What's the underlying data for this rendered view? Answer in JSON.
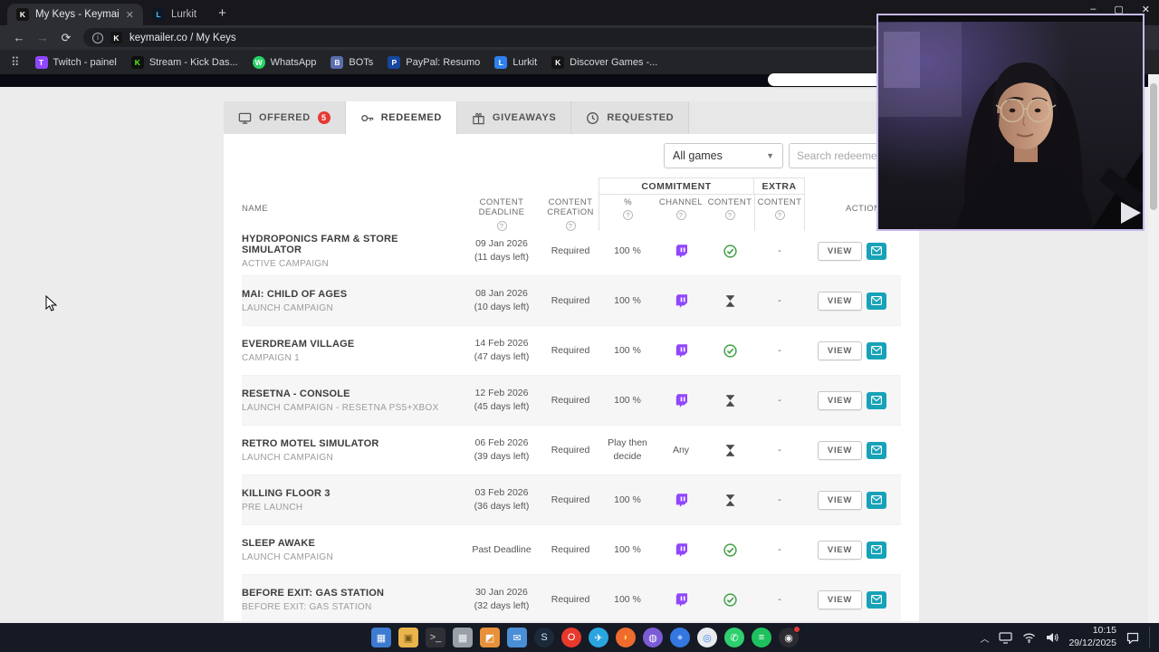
{
  "colors": {
    "accent_teal": "#17A2B8",
    "twitch_purple": "#9146FF",
    "success_green": "#43A047",
    "badge_red": "#E53935"
  },
  "browser": {
    "tabs": [
      {
        "title": "My Keys - Keymailer",
        "favicon": {
          "color": "#141414",
          "letter": "K",
          "fg": "#ffffff"
        }
      },
      {
        "title": "Lurkit",
        "favicon": {
          "color": "#0f1724",
          "letter": "L",
          "fg": "#4fc3f7"
        }
      }
    ],
    "new_tab_label": "+",
    "window_controls": {
      "minimize": "–",
      "maximize": "▢",
      "close": "✕"
    },
    "address": "keymailer.co / My Keys",
    "address_favicon": {
      "color": "#141414",
      "letter": "K",
      "fg": "#ffffff"
    },
    "bookmarks": [
      {
        "label": "Twitch - painel",
        "color": "#9146FF",
        "letter": "T",
        "fg": "#ffffff"
      },
      {
        "label": "Stream - Kick Das...",
        "color": "#0f0f0f",
        "letter": "K",
        "fg": "#53FC18"
      },
      {
        "label": "WhatsApp",
        "color": "#25D366",
        "letter": "W",
        "fg": "#ffffff",
        "round": true
      },
      {
        "label": "BOTs",
        "color": "#5b6eae",
        "letter": "B",
        "fg": "#ffffff"
      },
      {
        "label": "PayPal: Resumo",
        "color": "#1546a0",
        "letter": "P",
        "fg": "#ffffff"
      },
      {
        "label": "Lurkit",
        "color": "#2f80ed",
        "letter": "L",
        "fg": "#ffffff"
      },
      {
        "label": "Discover Games -...",
        "color": "#141414",
        "letter": "K",
        "fg": "#ffffff"
      }
    ]
  },
  "page": {
    "tabs": [
      {
        "label": "OFFERED",
        "badge": "5"
      },
      {
        "label": "REDEEMED"
      },
      {
        "label": "GIVEAWAYS"
      },
      {
        "label": "REQUESTED"
      }
    ],
    "filters": {
      "games": "All games",
      "search_placeholder": "Search redeemed"
    },
    "table": {
      "groups": {
        "commitment": "COMMITMENT",
        "extra": "EXTRA"
      },
      "columns": {
        "name": "NAME",
        "deadline": "CONTENT DEADLINE",
        "creation": "CONTENT CREATION",
        "percent": "%",
        "channel": "CHANNEL",
        "content": "CONTENT",
        "extra_content": "CONTENT",
        "actions": "ACTIONS"
      },
      "rows": [
        {
          "name": "HYDROPONICS FARM & STORE SIMULATOR",
          "subtitle": "ACTIVE CAMPAIGN",
          "deadline": "09 Jan 2026",
          "deadline_note": "(11 days left)",
          "creation": "Required",
          "percent": "100 %",
          "channel": "twitch",
          "status": "done",
          "extra": "-",
          "action": "VIEW"
        },
        {
          "name": "MAI: CHILD OF AGES",
          "subtitle": "LAUNCH CAMPAIGN",
          "deadline": "08 Jan 2026",
          "deadline_note": "(10 days left)",
          "creation": "Required",
          "percent": "100 %",
          "channel": "twitch",
          "status": "pending",
          "extra": "-",
          "action": "VIEW"
        },
        {
          "name": "EVERDREAM VILLAGE",
          "subtitle": "CAMPAIGN 1",
          "deadline": "14 Feb 2026",
          "deadline_note": "(47 days left)",
          "creation": "Required",
          "percent": "100 %",
          "channel": "twitch",
          "status": "done",
          "extra": "-",
          "action": "VIEW"
        },
        {
          "name": "RESETNA - CONSOLE",
          "subtitle": "LAUNCH CAMPAIGN - RESETNA PS5+XBOX",
          "deadline": "12 Feb 2026",
          "deadline_note": "(45 days left)",
          "creation": "Required",
          "percent": "100 %",
          "channel": "twitch",
          "status": "pending",
          "extra": "-",
          "action": "VIEW"
        },
        {
          "name": "RETRO MOTEL SIMULATOR",
          "subtitle": "LAUNCH CAMPAIGN",
          "deadline": "06 Feb 2026",
          "deadline_note": "(39 days left)",
          "creation": "Required",
          "percent": "Play then decide",
          "channel": "Any",
          "status": "pending",
          "extra": "-",
          "action": "VIEW"
        },
        {
          "name": "KILLING FLOOR 3",
          "subtitle": "PRE LAUNCH",
          "deadline": "03 Feb 2026",
          "deadline_note": "(36 days left)",
          "creation": "Required",
          "percent": "100 %",
          "channel": "twitch",
          "status": "pending",
          "extra": "-",
          "action": "VIEW"
        },
        {
          "name": "SLEEP AWAKE",
          "subtitle": "LAUNCH CAMPAIGN",
          "deadline": "Past Deadline",
          "deadline_note": "",
          "creation": "Required",
          "percent": "100 %",
          "channel": "twitch",
          "status": "done",
          "extra": "-",
          "action": "VIEW"
        },
        {
          "name": "BEFORE EXIT: GAS STATION",
          "subtitle": "BEFORE EXIT: GAS STATION",
          "deadline": "30 Jan 2026",
          "deadline_note": "(32 days left)",
          "creation": "Required",
          "percent": "100 %",
          "channel": "twitch",
          "status": "done",
          "extra": "-",
          "action": "VIEW"
        }
      ]
    }
  },
  "taskbar": {
    "time": "10:15",
    "date": "29/12/2025",
    "apps": [
      {
        "name": "task-view",
        "color": "#3d7ad1",
        "glyph": "▦"
      },
      {
        "name": "file-explorer",
        "color": "#e9b44c",
        "glyph": "▣",
        "fg": "#7a5a18"
      },
      {
        "name": "terminal",
        "color": "#2e3036",
        "glyph": ">_",
        "fg": "#cfd2d8"
      },
      {
        "name": "calculator",
        "color": "#9aa0a8",
        "glyph": "▦",
        "fg": "#f2f3f5"
      },
      {
        "name": "photos",
        "color": "#e8913a",
        "glyph": "◩",
        "fg": "#ffffff"
      },
      {
        "name": "mail",
        "color": "#4a8fd6",
        "glyph": "✉",
        "fg": "#ffffff"
      },
      {
        "name": "steam",
        "color": "#1b2a3a",
        "glyph": "S",
        "fg": "#cfe3f5",
        "round": true
      },
      {
        "name": "opera",
        "color": "#e8392c",
        "glyph": "O",
        "fg": "#ffffff",
        "round": true
      },
      {
        "name": "telegram",
        "color": "#2aa5e0",
        "glyph": "✈",
        "fg": "#ffffff",
        "round": true
      },
      {
        "name": "firefox",
        "color": "#f06b2e",
        "glyph": "◗",
        "fg": "#ffd25e",
        "round": true
      },
      {
        "name": "app-purple",
        "color": "#7b5bd6",
        "glyph": "◍",
        "fg": "#ffffff",
        "round": true
      },
      {
        "name": "app-blue",
        "color": "#3577e0",
        "glyph": "●",
        "fg": "#9cc2ff",
        "round": true
      },
      {
        "name": "chrome",
        "color": "#e9ebee",
        "glyph": "◎",
        "fg": "#4285f4",
        "round": true
      },
      {
        "name": "whatsapp",
        "color": "#2ed06e",
        "glyph": "✆",
        "fg": "#ffffff",
        "round": true
      },
      {
        "name": "spotify",
        "color": "#1fc15e",
        "glyph": "≡",
        "fg": "#ffffff",
        "round": true
      },
      {
        "name": "obs",
        "color": "#2b2b31",
        "glyph": "◉",
        "fg": "#e8e8ec",
        "round": true,
        "badge": true
      }
    ]
  }
}
